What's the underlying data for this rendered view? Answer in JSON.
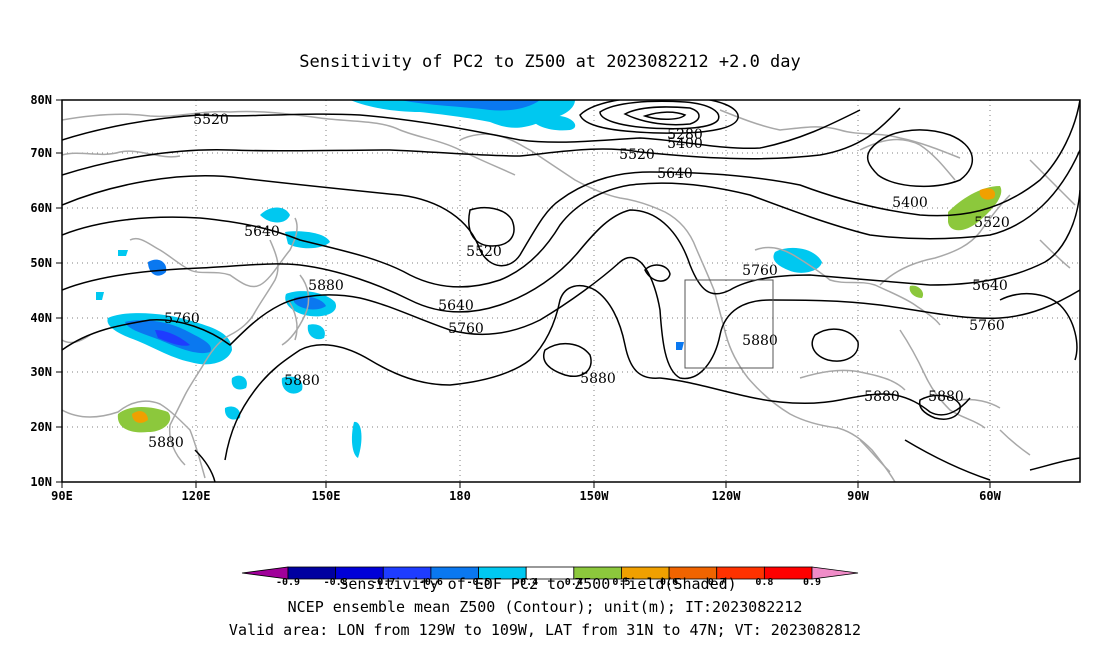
{
  "title": "Sensitivity of PC2 to Z500 at 2023082212 +2.0 day",
  "lat_ticks": [
    "80N",
    "70N",
    "60N",
    "50N",
    "40N",
    "30N",
    "20N",
    "10N"
  ],
  "lon_ticks": [
    "90E",
    "120E",
    "150E",
    "180",
    "150W",
    "120W",
    "90W",
    "60W"
  ],
  "contour_labels": [
    {
      "text": "5520"
    },
    {
      "text": "5280"
    },
    {
      "text": "5400"
    },
    {
      "text": "5520"
    },
    {
      "text": "5640"
    },
    {
      "text": "5400"
    },
    {
      "text": "5520"
    },
    {
      "text": "5640"
    },
    {
      "text": "5520"
    },
    {
      "text": "5880"
    },
    {
      "text": "5640"
    },
    {
      "text": "5760"
    },
    {
      "text": "5760"
    },
    {
      "text": "5760"
    },
    {
      "text": "5640"
    },
    {
      "text": "5760"
    },
    {
      "text": "5880"
    },
    {
      "text": "5880"
    },
    {
      "text": "5880"
    },
    {
      "text": "5880"
    },
    {
      "text": "5880"
    },
    {
      "text": "5880"
    }
  ],
  "colorbar": {
    "labels": [
      "-0.9",
      "-0.8",
      "-0.7",
      "-0.6",
      "-0.5",
      "-0.4",
      "0.4",
      "0.5",
      "0.6",
      "0.7",
      "0.8",
      "0.9"
    ],
    "colors": [
      "#a0009a",
      "#0000a0",
      "#0000d8",
      "#1e3cff",
      "#0a78f0",
      "#00c8f0",
      "#ffffff",
      "#8cc83c",
      "#f0a000",
      "#f06400",
      "#ff3200",
      "#ff0000",
      "#f08cc8"
    ]
  },
  "footer": [
    "Sensitivity of EOF PC2 to Z500 field(Shaded)",
    "NCEP ensemble mean Z500 (Contour); unit(m); IT:2023082212",
    "Valid area: LON from 129W to 109W, LAT from 31N to 47N; VT: 2023082812"
  ],
  "colors": {
    "contour": "#000000",
    "coast": "#a8a8a8",
    "grid": "#808080",
    "box": "#555555"
  }
}
